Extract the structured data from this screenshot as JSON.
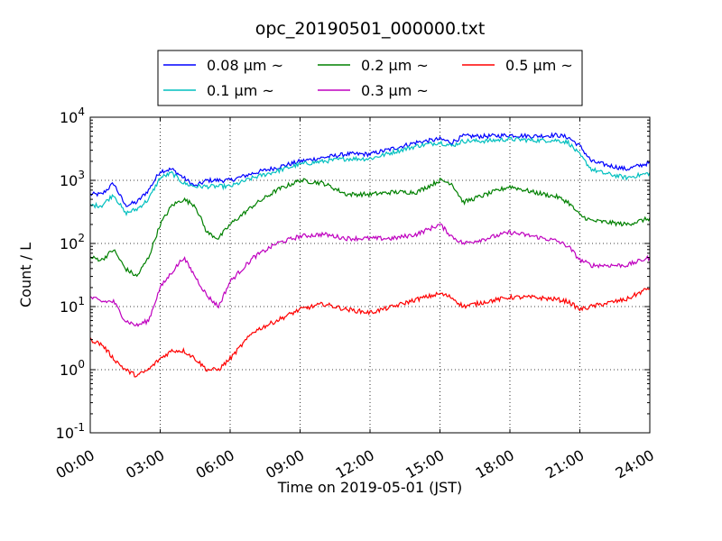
{
  "chart_data": {
    "type": "line",
    "title": "opc_20190501_000000.txt",
    "xlabel": "Time on 2019-05-01 (JST)",
    "ylabel": "Count / L",
    "yscale": "log",
    "ylim": [
      0.1,
      10000
    ],
    "xlim": [
      "00:00",
      "24:00"
    ],
    "grid": true,
    "legend_placement": "top-center",
    "x_ticks": [
      "00:00",
      "03:00",
      "06:00",
      "09:00",
      "12:00",
      "15:00",
      "18:00",
      "21:00",
      "24:00"
    ],
    "y_ticks": [
      {
        "base": "10",
        "exp": "-1"
      },
      {
        "base": "10",
        "exp": "0"
      },
      {
        "base": "10",
        "exp": "1"
      },
      {
        "base": "10",
        "exp": "2"
      },
      {
        "base": "10",
        "exp": "3"
      },
      {
        "base": "10",
        "exp": "4"
      }
    ],
    "series": [
      {
        "name": "0.08 μm ~",
        "color": "#0000ff",
        "x": [
          "00:00",
          "00:30",
          "01:00",
          "01:30",
          "02:00",
          "02:30",
          "03:00",
          "03:30",
          "04:00",
          "04:30",
          "05:00",
          "05:30",
          "06:00",
          "07:00",
          "08:00",
          "09:00",
          "10:00",
          "11:00",
          "12:00",
          "13:00",
          "14:00",
          "15:00",
          "15:30",
          "16:00",
          "17:00",
          "18:00",
          "19:00",
          "20:00",
          "20:30",
          "21:00",
          "21:30",
          "22:00",
          "23:00",
          "24:00"
        ],
        "values": [
          600,
          600,
          900,
          400,
          450,
          700,
          1400,
          1500,
          1100,
          800,
          1000,
          1000,
          1000,
          1300,
          1600,
          2000,
          2300,
          2600,
          2600,
          3200,
          4000,
          4500,
          4000,
          5000,
          5000,
          5200,
          5000,
          5200,
          4800,
          3500,
          2000,
          1800,
          1500,
          1900
        ]
      },
      {
        "name": "0.1 μm ~",
        "color": "#00bfbf",
        "x": [
          "00:00",
          "00:30",
          "01:00",
          "01:30",
          "02:00",
          "02:30",
          "03:00",
          "03:30",
          "04:00",
          "04:30",
          "05:00",
          "05:30",
          "06:00",
          "07:00",
          "08:00",
          "09:00",
          "10:00",
          "11:00",
          "12:00",
          "13:00",
          "14:00",
          "15:00",
          "15:30",
          "16:00",
          "17:00",
          "18:00",
          "19:00",
          "20:00",
          "20:30",
          "21:00",
          "21:30",
          "22:00",
          "23:00",
          "24:00"
        ],
        "values": [
          400,
          400,
          600,
          300,
          350,
          500,
          1100,
          1300,
          900,
          800,
          800,
          800,
          800,
          1100,
          1400,
          1800,
          2000,
          2200,
          2200,
          2800,
          3500,
          4000,
          3500,
          4200,
          4200,
          4500,
          4300,
          4300,
          4000,
          2500,
          1500,
          1300,
          1100,
          1300
        ]
      },
      {
        "name": "0.2 μm ~",
        "color": "#008000",
        "x": [
          "00:00",
          "00:30",
          "01:00",
          "01:30",
          "02:00",
          "02:30",
          "03:00",
          "03:30",
          "04:00",
          "04:30",
          "05:00",
          "05:30",
          "06:00",
          "07:00",
          "08:00",
          "09:00",
          "10:00",
          "11:00",
          "12:00",
          "13:00",
          "14:00",
          "15:00",
          "15:30",
          "16:00",
          "17:00",
          "18:00",
          "19:00",
          "20:00",
          "20:30",
          "21:00",
          "21:30",
          "22:00",
          "23:00",
          "24:00"
        ],
        "values": [
          60,
          55,
          80,
          40,
          30,
          60,
          200,
          400,
          500,
          400,
          150,
          120,
          200,
          400,
          700,
          1000,
          900,
          600,
          600,
          650,
          650,
          1000,
          900,
          450,
          600,
          800,
          650,
          550,
          450,
          280,
          230,
          220,
          200,
          250
        ]
      },
      {
        "name": "0.3 μm ~",
        "color": "#bf00bf",
        "x": [
          "00:00",
          "00:30",
          "01:00",
          "01:30",
          "02:00",
          "02:30",
          "03:00",
          "03:30",
          "04:00",
          "04:30",
          "05:00",
          "05:30",
          "06:00",
          "07:00",
          "08:00",
          "09:00",
          "10:00",
          "11:00",
          "12:00",
          "13:00",
          "14:00",
          "15:00",
          "15:30",
          "16:00",
          "17:00",
          "18:00",
          "19:00",
          "20:00",
          "20:30",
          "21:00",
          "21:30",
          "22:00",
          "23:00",
          "24:00"
        ],
        "values": [
          14,
          12,
          12,
          6,
          5,
          6,
          20,
          35,
          60,
          30,
          15,
          10,
          25,
          60,
          100,
          130,
          140,
          120,
          120,
          120,
          140,
          200,
          130,
          100,
          120,
          150,
          130,
          110,
          90,
          55,
          45,
          45,
          45,
          60
        ]
      },
      {
        "name": "0.5 μm ~",
        "color": "#ff0000",
        "x": [
          "00:00",
          "00:30",
          "01:00",
          "01:30",
          "02:00",
          "02:30",
          "03:00",
          "03:30",
          "04:00",
          "04:30",
          "05:00",
          "05:30",
          "06:00",
          "07:00",
          "08:00",
          "09:00",
          "10:00",
          "11:00",
          "12:00",
          "13:00",
          "14:00",
          "15:00",
          "15:30",
          "16:00",
          "17:00",
          "18:00",
          "19:00",
          "20:00",
          "20:30",
          "21:00",
          "21:30",
          "22:00",
          "23:00",
          "24:00"
        ],
        "values": [
          3,
          2.5,
          1.5,
          1,
          0.8,
          1,
          1.5,
          2,
          2,
          1.5,
          1,
          1,
          1.5,
          4,
          6,
          9,
          11,
          9,
          8,
          10,
          13,
          16,
          14,
          10,
          12,
          14,
          14,
          13,
          12,
          9,
          10,
          11,
          13,
          20
        ]
      }
    ]
  }
}
